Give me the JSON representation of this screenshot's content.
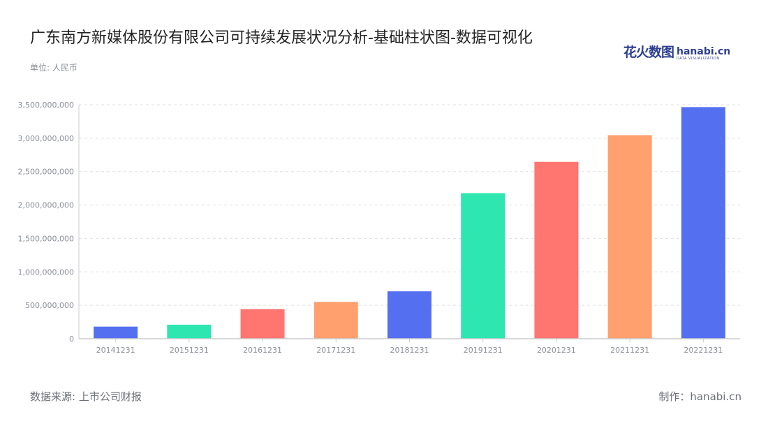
{
  "header": {
    "title": "广东南方新媒体股份有限公司可持续发展状况分析-基础柱状图-数据可视化",
    "unit": "单位: 人民币"
  },
  "logo": {
    "cn": "花火数图",
    "en": "hanabi.cn",
    "tagline": "DATA VISUALIZATION"
  },
  "footer": {
    "source": "数据来源: 上市公司财报",
    "maker": "制作：hanabi.cn"
  },
  "chart_data": {
    "type": "bar",
    "title": "广东南方新媒体股份有限公司可持续发展状况分析-基础柱状图-数据可视化",
    "xlabel": "",
    "ylabel": "",
    "categories": [
      "20141231",
      "20151231",
      "20161231",
      "20171231",
      "20181231",
      "20191231",
      "20201231",
      "20211231",
      "20221231"
    ],
    "values": [
      181000000,
      210000000,
      443000000,
      551000000,
      709000000,
      2178000000,
      2646000000,
      3045000000,
      3465000000
    ],
    "colors": [
      "#5470f0",
      "#2ee6b0",
      "#ff7570",
      "#ffa06e",
      "#5470f0",
      "#2ee6b0",
      "#ff7570",
      "#ffa06e",
      "#5470f0"
    ],
    "ylim": [
      0,
      3500000000
    ],
    "yticks": [
      0,
      500000000,
      1000000000,
      1500000000,
      2000000000,
      2500000000,
      3000000000,
      3500000000
    ],
    "ytick_labels": [
      "0",
      "500,000,000",
      "1,000,000,000",
      "1,500,000,000",
      "2,000,000,000",
      "2,500,000,000",
      "3,000,000,000",
      "3,500,000,000"
    ],
    "grid": true,
    "legend": "none"
  }
}
